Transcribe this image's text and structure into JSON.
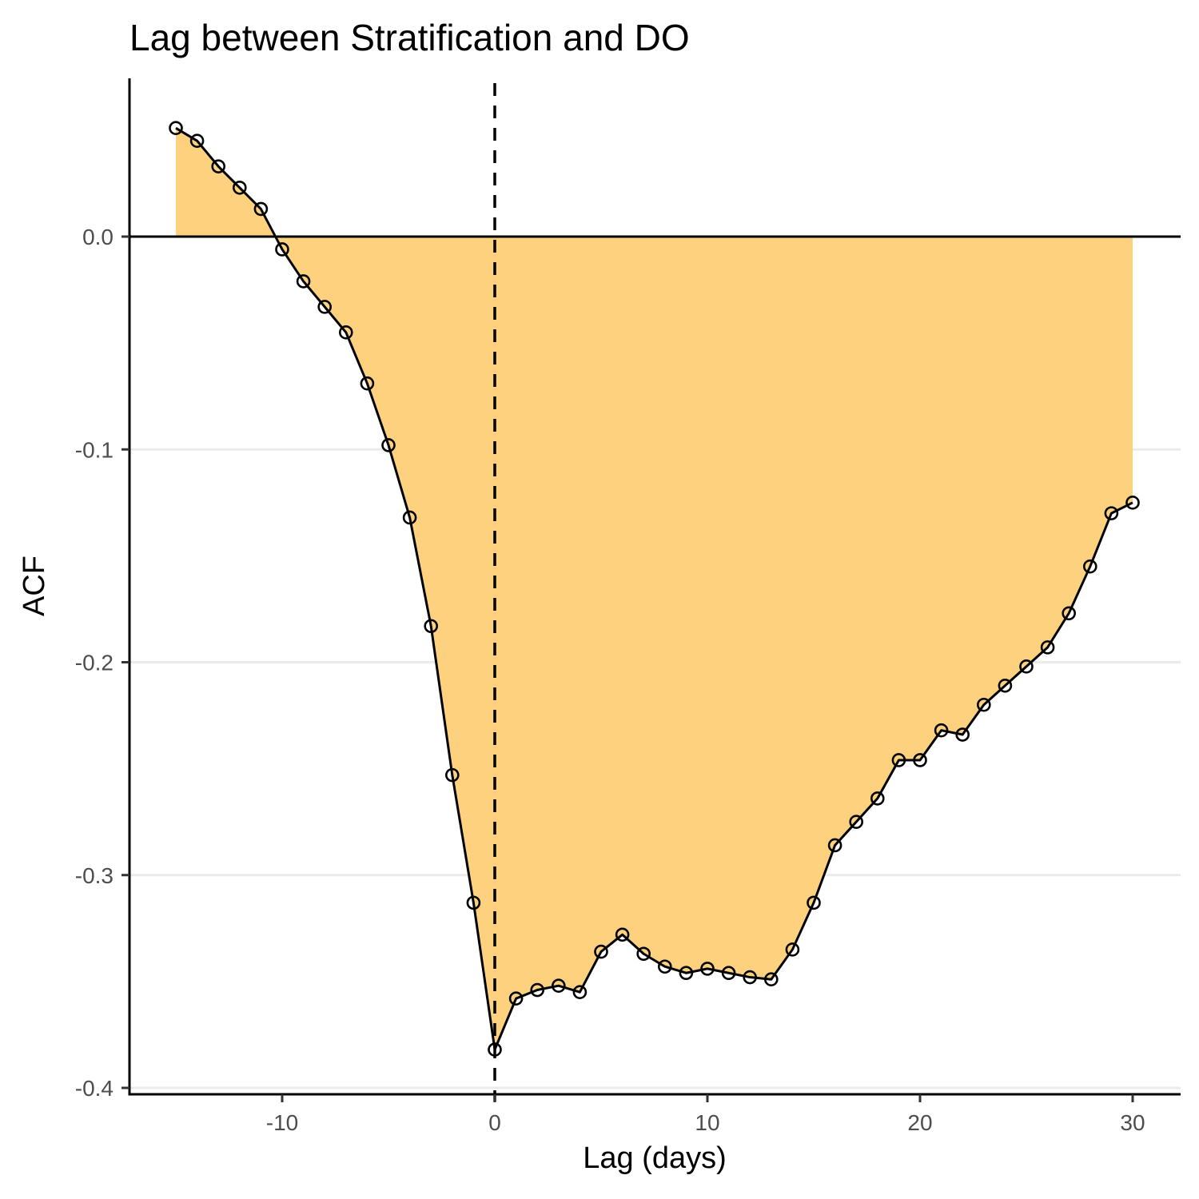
{
  "chart_data": {
    "type": "area",
    "title": "Lag between Stratification and DO",
    "xlabel": "Lag (days)",
    "ylabel": "ACF",
    "xlim": [
      -17.2,
      32.2
    ],
    "ylim": [
      -0.4,
      0.07
    ],
    "x_ticks": [
      -10,
      0,
      10,
      20,
      30
    ],
    "y_ticks": [
      0.0,
      -0.1,
      -0.2,
      -0.3,
      -0.4
    ],
    "x_tick_labels": [
      "-10",
      "0",
      "10",
      "20",
      "30"
    ],
    "y_tick_labels": [
      "0.0",
      "-0.1",
      "-0.2",
      "-0.3",
      "-0.4"
    ],
    "grid": "horizontal major only",
    "reference_lines": {
      "horizontal_y": 0,
      "vertical_dashed_x": 0
    },
    "colors": {
      "fill": "#fed17f",
      "line": "#000000",
      "grid": "#ebebeb"
    },
    "x": [
      -15,
      -14,
      -13,
      -12,
      -11,
      -10,
      -9,
      -8,
      -7,
      -6,
      -5,
      -4,
      -3,
      -2,
      -1,
      0,
      1,
      2,
      3,
      4,
      5,
      6,
      7,
      8,
      9,
      10,
      11,
      12,
      13,
      14,
      15,
      16,
      17,
      18,
      19,
      20,
      21,
      22,
      23,
      24,
      25,
      26,
      27,
      28,
      29,
      30
    ],
    "series": [
      {
        "values": [
          0.051,
          0.045,
          0.033,
          0.023,
          0.013,
          -0.006,
          -0.021,
          -0.033,
          -0.045,
          -0.069,
          -0.098,
          -0.132,
          -0.183,
          -0.253,
          -0.313,
          -0.382,
          -0.358,
          -0.354,
          -0.352,
          -0.355,
          -0.336,
          -0.328,
          -0.337,
          -0.343,
          -0.346,
          -0.344,
          -0.346,
          -0.348,
          -0.349,
          -0.335,
          -0.313,
          -0.286,
          -0.275,
          -0.264,
          -0.246,
          -0.246,
          -0.232,
          -0.234,
          -0.22,
          -0.211,
          -0.202,
          -0.193,
          -0.177,
          -0.155,
          -0.13,
          -0.125
        ]
      }
    ]
  }
}
